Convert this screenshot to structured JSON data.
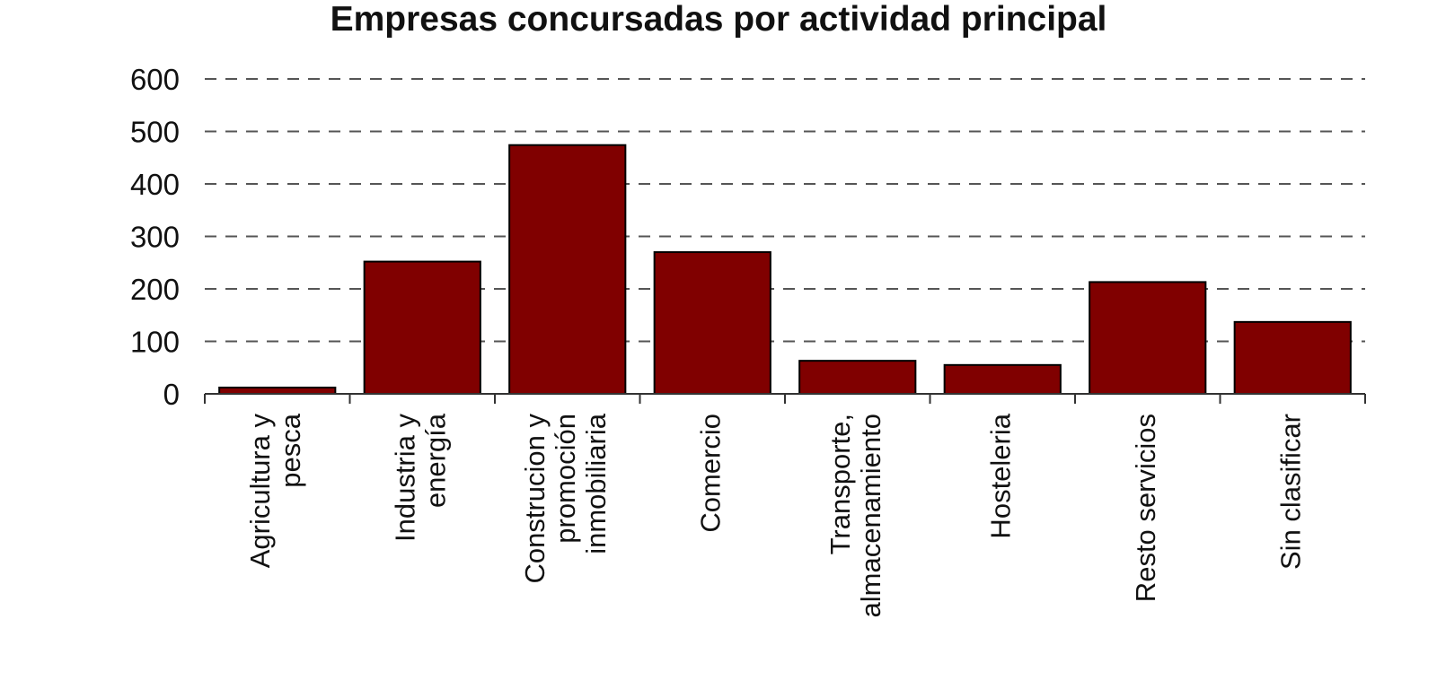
{
  "chart_data": {
    "type": "bar",
    "title": "Empresas concursadas por actividad principal",
    "xlabel": "",
    "ylabel": "",
    "ylim": [
      0,
      600
    ],
    "yticks": [
      0,
      100,
      200,
      300,
      400,
      500,
      600
    ],
    "grid": true,
    "categories": [
      "Agricultura y pesca",
      "Industria y energía",
      "Construcion y promoción inmobiliaria",
      "Comercio",
      "Transporte, almacenamiento",
      "Hosteleria",
      "Resto servicios",
      "Sin clasificar"
    ],
    "category_lines": [
      [
        "Agricultura y",
        "pesca"
      ],
      [
        "Industria y",
        "energía"
      ],
      [
        "Construcion y",
        "promoción",
        "inmobiliaria"
      ],
      [
        "Comercio"
      ],
      [
        "Transporte,",
        "almacenamiento"
      ],
      [
        "Hosteleria"
      ],
      [
        "Resto servicios"
      ],
      [
        "Sin clasificar"
      ]
    ],
    "values": [
      12,
      252,
      474,
      270,
      63,
      55,
      213,
      137
    ],
    "bar_color": "#800000"
  }
}
